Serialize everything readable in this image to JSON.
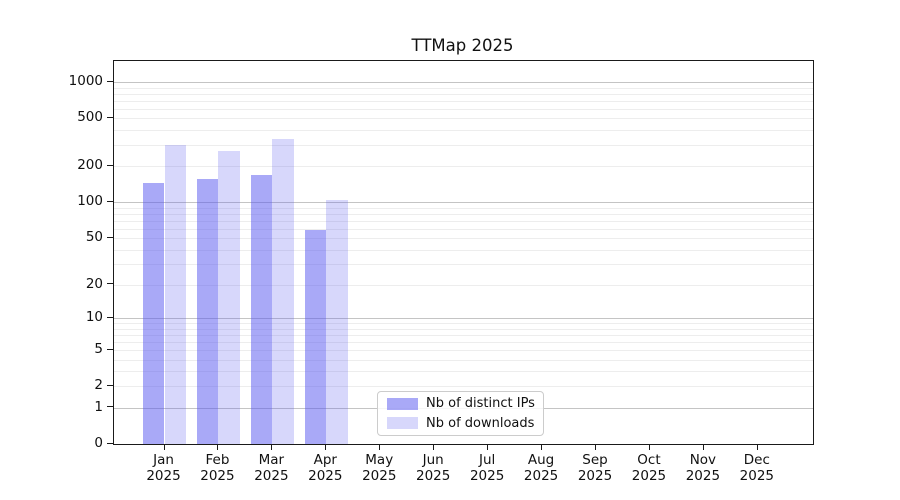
{
  "figure": {
    "background": "#ffffff"
  },
  "chart_data": {
    "type": "bar",
    "title": "TTMap 2025",
    "x_tick_labels": [
      [
        "Jan",
        "2025"
      ],
      [
        "Feb",
        "2025"
      ],
      [
        "Mar",
        "2025"
      ],
      [
        "Apr",
        "2025"
      ],
      [
        "May",
        "2025"
      ],
      [
        "Jun",
        "2025"
      ],
      [
        "Jul",
        "2025"
      ],
      [
        "Aug",
        "2025"
      ],
      [
        "Sep",
        "2025"
      ],
      [
        "Oct",
        "2025"
      ],
      [
        "Nov",
        "2025"
      ],
      [
        "Dec",
        "2025"
      ]
    ],
    "series": [
      {
        "name": "Nb of distinct IPs",
        "color": "#5656f0",
        "alpha": 0.51,
        "rendered_color": "#a9a9f7",
        "values": [
          145,
          156,
          170,
          58,
          null,
          null,
          null,
          null,
          null,
          null,
          null,
          null
        ]
      },
      {
        "name": "Nb of downloads",
        "color": "#5656f0",
        "alpha": 0.24,
        "rendered_color": "#d9d9f7",
        "values": [
          300,
          266,
          337,
          105,
          null,
          null,
          null,
          null,
          null,
          null,
          null,
          null
        ]
      }
    ],
    "y_ticks": [
      0,
      1,
      2,
      5,
      10,
      20,
      50,
      100,
      200,
      500,
      1000
    ],
    "y_scale": "log10(value+1)",
    "ylim": [
      0,
      1500
    ],
    "grid": {
      "major_ticks": [
        1,
        10,
        100,
        1000
      ],
      "major_color": "#c4c4c4",
      "minor_ticks": [
        2,
        3,
        4,
        5,
        6,
        7,
        8,
        9,
        20,
        30,
        40,
        50,
        60,
        70,
        80,
        90,
        200,
        300,
        400,
        500,
        600,
        700,
        800,
        900
      ],
      "minor_color": "#ededed"
    },
    "legend_position": "inside lower-center-left"
  }
}
